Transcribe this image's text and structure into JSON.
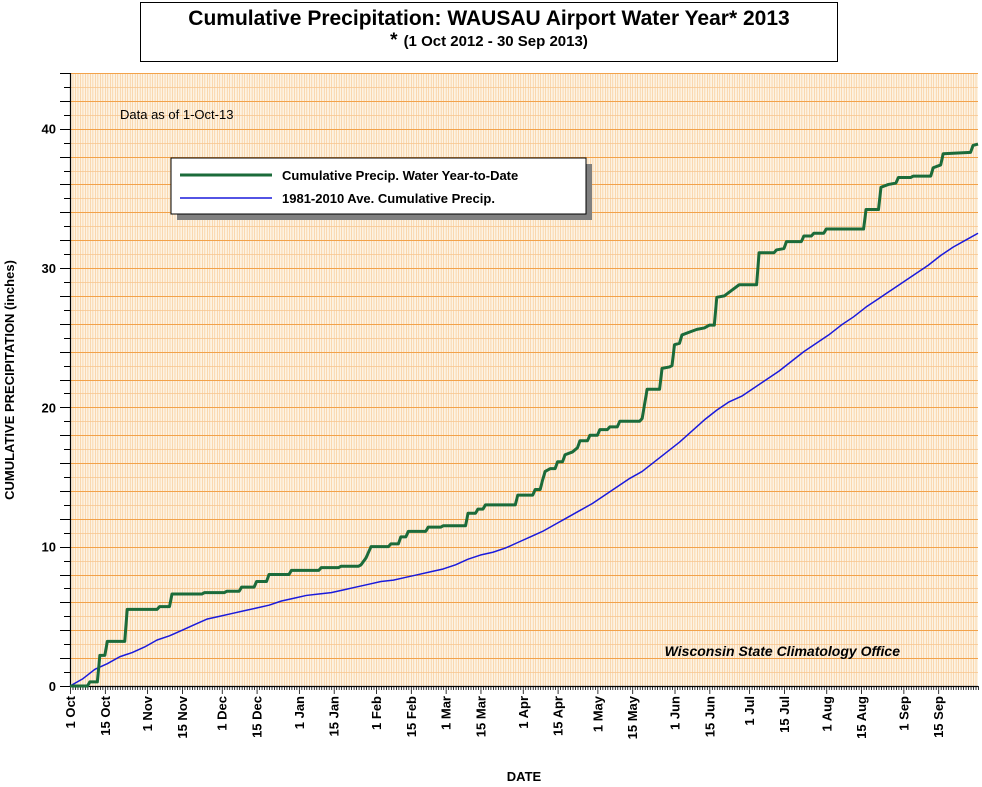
{
  "title": "Cumulative Precipitation: WAUSAU Airport Water Year* 2013",
  "subtitle_star": "*",
  "subtitle": "(1 Oct 2012 - 30 Sep 2013)",
  "annotation": "Data as of 1-Oct-13",
  "credit": "Wisconsin State Climatology Office",
  "colors": {
    "background": "#fdf3e3",
    "grid_major": "#f2a24a",
    "grid_minor": "#f7c58c",
    "series_actual": "#1b6b3a",
    "series_normal": "#1a1adc"
  },
  "chart_data": {
    "type": "line",
    "title": "Cumulative Precipitation: WAUSAU Airport Water Year* 2013",
    "subtitle": "* (1 Oct 2012 - 30 Sep 2013)",
    "xlabel": "DATE",
    "ylabel": "CUMULATIVE PRECIPITATION (inches)",
    "xlim": [
      0,
      365
    ],
    "ylim": [
      0,
      44
    ],
    "grid": true,
    "legend_position": "upper-left",
    "x_ticks": [
      {
        "day": 0,
        "label": "1 Oct"
      },
      {
        "day": 14,
        "label": "15 Oct"
      },
      {
        "day": 31,
        "label": "1 Nov"
      },
      {
        "day": 45,
        "label": "15 Nov"
      },
      {
        "day": 61,
        "label": "1 Dec"
      },
      {
        "day": 75,
        "label": "15 Dec"
      },
      {
        "day": 92,
        "label": "1 Jan"
      },
      {
        "day": 106,
        "label": "15 Jan"
      },
      {
        "day": 123,
        "label": "1 Feb"
      },
      {
        "day": 137,
        "label": "15 Feb"
      },
      {
        "day": 151,
        "label": "1 Mar"
      },
      {
        "day": 165,
        "label": "15 Mar"
      },
      {
        "day": 182,
        "label": "1 Apr"
      },
      {
        "day": 196,
        "label": "15 Apr"
      },
      {
        "day": 212,
        "label": "1 May"
      },
      {
        "day": 226,
        "label": "15 May"
      },
      {
        "day": 243,
        "label": "1 Jun"
      },
      {
        "day": 257,
        "label": "15 Jun"
      },
      {
        "day": 273,
        "label": "1 Jul"
      },
      {
        "day": 287,
        "label": "15 Jul"
      },
      {
        "day": 304,
        "label": "1 Aug"
      },
      {
        "day": 318,
        "label": "15 Aug"
      },
      {
        "day": 335,
        "label": "1 Sep"
      },
      {
        "day": 349,
        "label": "15 Sep"
      }
    ],
    "y_ticks": [
      0,
      10,
      20,
      30,
      40
    ],
    "series": [
      {
        "name": "Cumulative Precip.  Water Year-to-Date",
        "color": "#1b6b3a",
        "points": [
          [
            0,
            0
          ],
          [
            7,
            0
          ],
          [
            8,
            0.3
          ],
          [
            11,
            0.3
          ],
          [
            12,
            2.2
          ],
          [
            14,
            2.2
          ],
          [
            15,
            3.2
          ],
          [
            22,
            3.2
          ],
          [
            23,
            5.5
          ],
          [
            35,
            5.5
          ],
          [
            36,
            5.7
          ],
          [
            40,
            5.7
          ],
          [
            41,
            6.6
          ],
          [
            53,
            6.6
          ],
          [
            54,
            6.7
          ],
          [
            62,
            6.7
          ],
          [
            63,
            6.8
          ],
          [
            68,
            6.8
          ],
          [
            69,
            7.1
          ],
          [
            74,
            7.1
          ],
          [
            75,
            7.5
          ],
          [
            79,
            7.5
          ],
          [
            80,
            8.0
          ],
          [
            88,
            8.0
          ],
          [
            89,
            8.3
          ],
          [
            100,
            8.3
          ],
          [
            101,
            8.5
          ],
          [
            108,
            8.5
          ],
          [
            109,
            8.6
          ],
          [
            116,
            8.6
          ],
          [
            117,
            8.7
          ],
          [
            119,
            9.2
          ],
          [
            121,
            10.0
          ],
          [
            128,
            10.0
          ],
          [
            129,
            10.2
          ],
          [
            132,
            10.2
          ],
          [
            133,
            10.7
          ],
          [
            135,
            10.7
          ],
          [
            136,
            11.1
          ],
          [
            143,
            11.1
          ],
          [
            144,
            11.4
          ],
          [
            149,
            11.4
          ],
          [
            150,
            11.5
          ],
          [
            159,
            11.5
          ],
          [
            160,
            12.4
          ],
          [
            163,
            12.4
          ],
          [
            164,
            12.7
          ],
          [
            166,
            12.7
          ],
          [
            167,
            13.0
          ],
          [
            179,
            13.0
          ],
          [
            180,
            13.7
          ],
          [
            186,
            13.7
          ],
          [
            187,
            14.1
          ],
          [
            189,
            14.1
          ],
          [
            190,
            14.8
          ],
          [
            191,
            15.4
          ],
          [
            193,
            15.6
          ],
          [
            195,
            15.6
          ],
          [
            196,
            16.1
          ],
          [
            198,
            16.1
          ],
          [
            199,
            16.6
          ],
          [
            202,
            16.8
          ],
          [
            204,
            17.1
          ],
          [
            205,
            17.6
          ],
          [
            208,
            17.6
          ],
          [
            209,
            18.0
          ],
          [
            212,
            18.0
          ],
          [
            213,
            18.4
          ],
          [
            216,
            18.4
          ],
          [
            217,
            18.6
          ],
          [
            220,
            18.6
          ],
          [
            221,
            19.0
          ],
          [
            229,
            19.0
          ],
          [
            230,
            19.2
          ],
          [
            232,
            21.3
          ],
          [
            237,
            21.3
          ],
          [
            238,
            22.8
          ],
          [
            241,
            22.9
          ],
          [
            242,
            23.0
          ],
          [
            243,
            24.5
          ],
          [
            245,
            24.6
          ],
          [
            246,
            25.2
          ],
          [
            249,
            25.4
          ],
          [
            252,
            25.6
          ],
          [
            255,
            25.7
          ],
          [
            257,
            25.9
          ],
          [
            259,
            25.9
          ],
          [
            260,
            27.9
          ],
          [
            263,
            28.0
          ],
          [
            266,
            28.4
          ],
          [
            269,
            28.8
          ],
          [
            276,
            28.8
          ],
          [
            277,
            31.1
          ],
          [
            283,
            31.1
          ],
          [
            284,
            31.3
          ],
          [
            287,
            31.4
          ],
          [
            288,
            31.9
          ],
          [
            294,
            31.9
          ],
          [
            295,
            32.3
          ],
          [
            298,
            32.3
          ],
          [
            299,
            32.5
          ],
          [
            303,
            32.5
          ],
          [
            304,
            32.8
          ],
          [
            319,
            32.8
          ],
          [
            320,
            34.2
          ],
          [
            325,
            34.2
          ],
          [
            326,
            35.8
          ],
          [
            329,
            36.0
          ],
          [
            332,
            36.1
          ],
          [
            333,
            36.5
          ],
          [
            338,
            36.5
          ],
          [
            339,
            36.6
          ],
          [
            346,
            36.6
          ],
          [
            347,
            37.2
          ],
          [
            350,
            37.4
          ],
          [
            351,
            38.2
          ],
          [
            362,
            38.3
          ],
          [
            363,
            38.8
          ],
          [
            365,
            38.9
          ]
        ]
      },
      {
        "name": "1981-2010 Ave. Cumulative Precip.",
        "color": "#1a1adc",
        "points": [
          [
            0,
            0
          ],
          [
            5,
            0.5
          ],
          [
            10,
            1.2
          ],
          [
            15,
            1.6
          ],
          [
            20,
            2.1
          ],
          [
            25,
            2.4
          ],
          [
            30,
            2.8
          ],
          [
            35,
            3.3
          ],
          [
            40,
            3.6
          ],
          [
            45,
            4.0
          ],
          [
            50,
            4.4
          ],
          [
            55,
            4.8
          ],
          [
            60,
            5.0
          ],
          [
            65,
            5.2
          ],
          [
            70,
            5.4
          ],
          [
            75,
            5.6
          ],
          [
            80,
            5.8
          ],
          [
            85,
            6.1
          ],
          [
            90,
            6.3
          ],
          [
            95,
            6.5
          ],
          [
            100,
            6.6
          ],
          [
            105,
            6.7
          ],
          [
            110,
            6.9
          ],
          [
            115,
            7.1
          ],
          [
            120,
            7.3
          ],
          [
            125,
            7.5
          ],
          [
            130,
            7.6
          ],
          [
            135,
            7.8
          ],
          [
            140,
            8.0
          ],
          [
            145,
            8.2
          ],
          [
            150,
            8.4
          ],
          [
            155,
            8.7
          ],
          [
            160,
            9.1
          ],
          [
            165,
            9.4
          ],
          [
            170,
            9.6
          ],
          [
            175,
            9.9
          ],
          [
            180,
            10.3
          ],
          [
            185,
            10.7
          ],
          [
            190,
            11.1
          ],
          [
            195,
            11.6
          ],
          [
            200,
            12.1
          ],
          [
            205,
            12.6
          ],
          [
            210,
            13.1
          ],
          [
            215,
            13.7
          ],
          [
            220,
            14.3
          ],
          [
            225,
            14.9
          ],
          [
            230,
            15.4
          ],
          [
            235,
            16.1
          ],
          [
            240,
            16.8
          ],
          [
            245,
            17.5
          ],
          [
            250,
            18.3
          ],
          [
            255,
            19.1
          ],
          [
            260,
            19.8
          ],
          [
            265,
            20.4
          ],
          [
            270,
            20.8
          ],
          [
            275,
            21.4
          ],
          [
            280,
            22.0
          ],
          [
            285,
            22.6
          ],
          [
            290,
            23.3
          ],
          [
            295,
            24.0
          ],
          [
            300,
            24.6
          ],
          [
            305,
            25.2
          ],
          [
            310,
            25.9
          ],
          [
            315,
            26.5
          ],
          [
            320,
            27.2
          ],
          [
            325,
            27.8
          ],
          [
            330,
            28.4
          ],
          [
            335,
            29.0
          ],
          [
            340,
            29.6
          ],
          [
            345,
            30.2
          ],
          [
            350,
            30.9
          ],
          [
            355,
            31.5
          ],
          [
            360,
            32.0
          ],
          [
            365,
            32.5
          ]
        ]
      }
    ]
  }
}
